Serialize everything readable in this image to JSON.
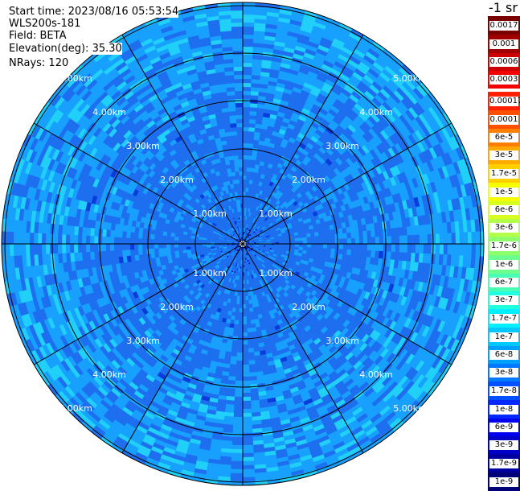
{
  "info": {
    "start_time": "Start time: 2023/08/16 05:53:54",
    "instrument": "WLS200s-181",
    "field": "Field: BETA",
    "elevation_label": "Elevation(deg):",
    "elevation_value": "35.30",
    "nrays": "NRays: 120"
  },
  "scale_title": "-1 sr",
  "ring_labels": [
    "1.00km",
    "2.00km",
    "3.00km",
    "4.00km",
    "5.00km"
  ],
  "colorbar": [
    {
      "label": "0.0017",
      "color": "#7a0000"
    },
    {
      "label": "0.001",
      "color": "#a00000"
    },
    {
      "label": "0.0006",
      "color": "#cc0000"
    },
    {
      "label": "0.0003",
      "color": "#f40000"
    },
    {
      "label": "0.00017",
      "color": "#ff2000"
    },
    {
      "label": "0.0001",
      "color": "#ff5000"
    },
    {
      "label": "6e-5",
      "color": "#ff8000"
    },
    {
      "label": "3e-5",
      "color": "#ffaa00"
    },
    {
      "label": "1.7e-5",
      "color": "#ffd000"
    },
    {
      "label": "1e-5",
      "color": "#f4ff00"
    },
    {
      "label": "6e-6",
      "color": "#d8ff20"
    },
    {
      "label": "3e-6",
      "color": "#b4ff48"
    },
    {
      "label": "1.7e-6",
      "color": "#90ff6c"
    },
    {
      "label": "1e-6",
      "color": "#6cff90"
    },
    {
      "label": "6e-7",
      "color": "#48ffb4"
    },
    {
      "label": "3e-7",
      "color": "#20ffe0"
    },
    {
      "label": "1.7e-7",
      "color": "#00f0ff"
    },
    {
      "label": "1e-7",
      "color": "#00c8ff"
    },
    {
      "label": "6e-8",
      "color": "#00a0ff"
    },
    {
      "label": "3e-8",
      "color": "#0078ff"
    },
    {
      "label": "1.7e-8",
      "color": "#0050ff"
    },
    {
      "label": "1e-8",
      "color": "#0028ff"
    },
    {
      "label": "6e-9",
      "color": "#0000f0"
    },
    {
      "label": "3e-9",
      "color": "#0000c8"
    },
    {
      "label": "1.7e-9",
      "color": "#0000a0"
    },
    {
      "label": "1e-9",
      "color": "#000078"
    }
  ],
  "colors": {
    "background": "#ffffff",
    "grid": "#000000",
    "ring_label": "#ffffff",
    "field_base": "#1e6ef0",
    "field_light": "#18a0ff",
    "field_cyan": "#20d0f8",
    "field_dark": "#0a3cdc"
  }
}
